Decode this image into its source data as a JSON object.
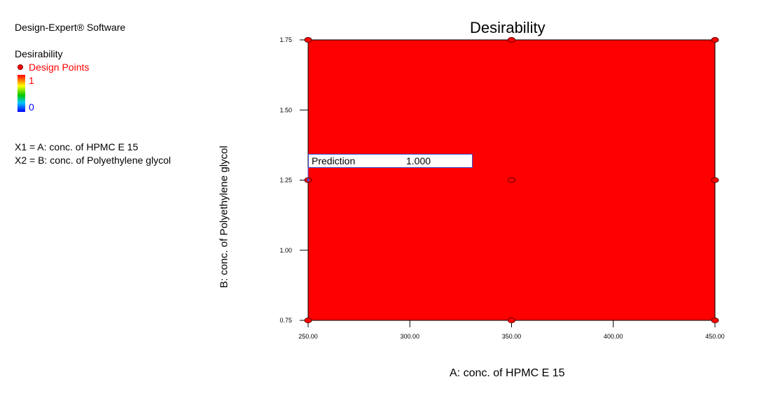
{
  "legend": {
    "software": "Design-Expert® Software",
    "response": "Desirability",
    "design_points_label": "Design Points",
    "scale_high": "1",
    "scale_low": "0",
    "factor_x1": "X1 = A: conc. of HPMC E 15",
    "factor_x2": "X2 = B: conc. of Polyethylene glycol",
    "colors": {
      "design_points": "#ff0000",
      "scale_high": "#ff0000",
      "scale_low": "#0000ff"
    }
  },
  "prediction": {
    "label": "Prediction",
    "value": "1.000"
  },
  "chart_data": {
    "type": "heatmap",
    "title": "Desirability",
    "xlabel": "A: conc. of HPMC E 15",
    "ylabel": "B: conc. of Polyethylene glycol",
    "xlim": [
      250,
      450
    ],
    "ylim": [
      0.75,
      1.75
    ],
    "x_ticks": [
      "250.00",
      "300.00",
      "350.00",
      "400.00",
      "450.00"
    ],
    "y_ticks": [
      "0.75",
      "1.00",
      "1.25",
      "1.50",
      "1.75"
    ],
    "surface_value": 1,
    "surface_color": "#ff0000",
    "design_points": [
      {
        "x": 250,
        "y": 1.75
      },
      {
        "x": 350,
        "y": 1.75
      },
      {
        "x": 450,
        "y": 1.75
      },
      {
        "x": 250,
        "y": 1.25
      },
      {
        "x": 350,
        "y": 1.25
      },
      {
        "x": 450,
        "y": 1.25
      },
      {
        "x": 250,
        "y": 0.75
      },
      {
        "x": 350,
        "y": 0.75
      },
      {
        "x": 450,
        "y": 0.75
      }
    ],
    "prediction_point": {
      "x": 250,
      "y": 1.25,
      "value": 1.0
    }
  }
}
